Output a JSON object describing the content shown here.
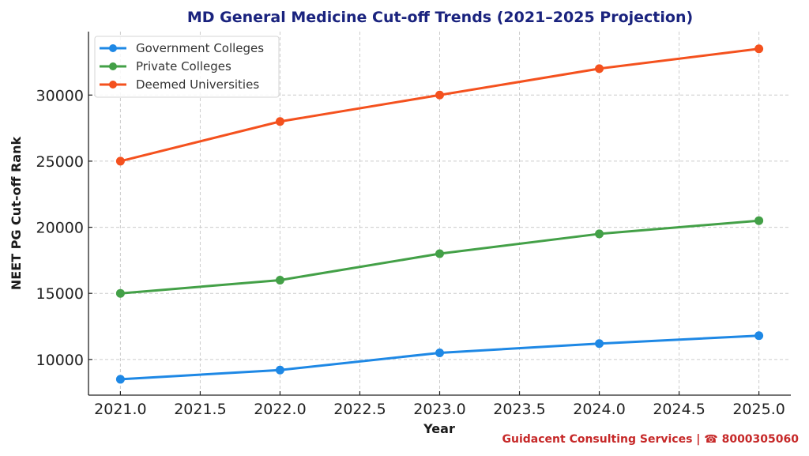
{
  "chart_data": {
    "type": "line",
    "title": "MD General Medicine Cut-off Trends (2021–2025 Projection)",
    "xlabel": "Year",
    "ylabel": "NEET PG Cut-off Rank",
    "x": [
      2021,
      2022,
      2023,
      2024,
      2025
    ],
    "xlim": [
      2020.8,
      2025.2
    ],
    "ylim": [
      7300,
      34800
    ],
    "xticks": [
      2021.0,
      2021.5,
      2022.0,
      2022.5,
      2023.0,
      2023.5,
      2024.0,
      2024.5,
      2025.0
    ],
    "xtick_labels": [
      "2021.0",
      "2021.5",
      "2022.0",
      "2022.5",
      "2023.0",
      "2023.5",
      "2024.0",
      "2024.5",
      "2025.0"
    ],
    "yticks": [
      10000,
      15000,
      20000,
      25000,
      30000
    ],
    "ytick_labels": [
      "10000",
      "15000",
      "20000",
      "25000",
      "30000"
    ],
    "grid": true,
    "legend_position": "top-left",
    "series": [
      {
        "name": "Government Colleges",
        "color": "#1e88e5",
        "values": [
          8500,
          9200,
          10500,
          11200,
          11800
        ]
      },
      {
        "name": "Private Colleges",
        "color": "#43a047",
        "values": [
          15000,
          16000,
          18000,
          19500,
          20500
        ]
      },
      {
        "name": "Deemed Universities",
        "color": "#f4511e",
        "values": [
          25000,
          28000,
          30000,
          32000,
          33500
        ]
      }
    ],
    "annotation": "Guidacent Consulting Services | ☎ 8000305060"
  }
}
